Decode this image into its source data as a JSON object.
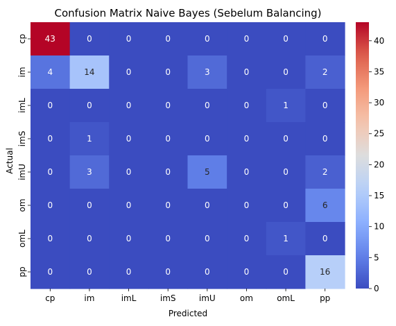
{
  "chart_data": {
    "type": "heatmap",
    "title": "Confusion Matrix Naive Bayes (Sebelum Balancing)",
    "xlabel": "Predicted",
    "ylabel": "Actual",
    "x_categories": [
      "cp",
      "im",
      "imL",
      "imS",
      "imU",
      "om",
      "omL",
      "pp"
    ],
    "y_categories": [
      "cp",
      "im",
      "imL",
      "imS",
      "imU",
      "om",
      "omL",
      "pp"
    ],
    "values": [
      [
        43,
        0,
        0,
        0,
        0,
        0,
        0,
        0
      ],
      [
        4,
        14,
        0,
        0,
        3,
        0,
        0,
        2
      ],
      [
        0,
        0,
        0,
        0,
        0,
        0,
        1,
        0
      ],
      [
        0,
        1,
        0,
        0,
        0,
        0,
        0,
        0
      ],
      [
        0,
        3,
        0,
        0,
        5,
        0,
        0,
        2
      ],
      [
        0,
        0,
        0,
        0,
        0,
        0,
        0,
        6
      ],
      [
        0,
        0,
        0,
        0,
        0,
        0,
        1,
        0
      ],
      [
        0,
        0,
        0,
        0,
        0,
        0,
        0,
        16
      ]
    ],
    "colormap": "coolwarm",
    "vmin": 0,
    "vmax": 43,
    "colorbar_ticks": [
      0,
      5,
      10,
      15,
      20,
      25,
      30,
      35,
      40
    ]
  }
}
